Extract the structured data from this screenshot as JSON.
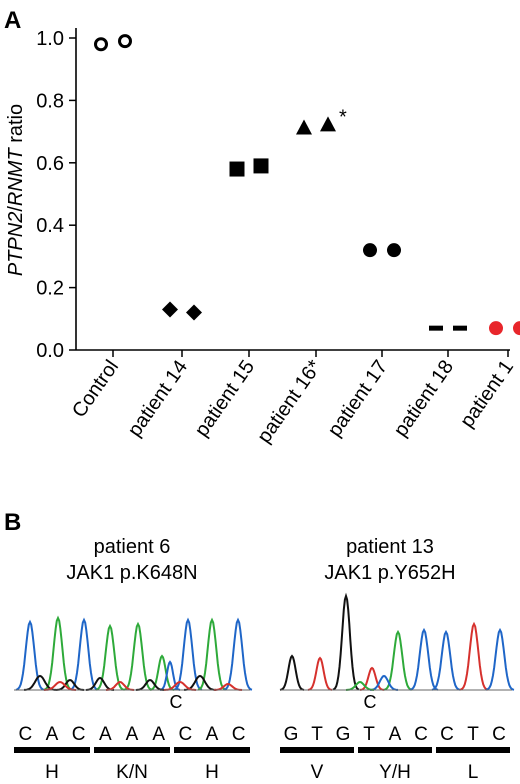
{
  "panel_a": {
    "letter": "A",
    "chart_data": {
      "type": "scatter",
      "ylabel_italic_1": "PTPN2",
      "ylabel_sep": "/",
      "ylabel_italic_2": "RNMT",
      "ylabel_suffix": " ratio",
      "ylim": [
        0,
        1.0
      ],
      "yticks": [
        "0.0",
        "0.2",
        "0.4",
        "0.6",
        "0.8",
        "1.0"
      ],
      "categories": [
        "Control",
        "patient 14",
        "patient 15",
        "patient 16*",
        "patient 17",
        "patient 18",
        "patient 1"
      ],
      "series": [
        {
          "marker": "open-circle",
          "color": "#000000",
          "values": [
            0.98,
            0.99
          ]
        },
        {
          "marker": "diamond",
          "color": "#000000",
          "values": [
            0.13,
            0.12
          ]
        },
        {
          "marker": "square",
          "color": "#000000",
          "values": [
            0.58,
            0.59
          ]
        },
        {
          "marker": "triangle",
          "color": "#000000",
          "values": [
            0.71,
            0.72
          ]
        },
        {
          "marker": "circle",
          "color": "#000000",
          "values": [
            0.32,
            0.32
          ]
        },
        {
          "marker": "dash",
          "color": "#000000",
          "values": [
            0.07,
            0.07
          ]
        },
        {
          "marker": "circle",
          "color": "#e8262b",
          "values": [
            0.07,
            0.07
          ]
        }
      ],
      "annotations": [
        "*"
      ]
    }
  },
  "panel_b": {
    "letter": "B",
    "left": {
      "title_line1": "patient 6",
      "title_line2": "JAK1 p.K648N",
      "variant_base": "C",
      "bases": [
        "C",
        "A",
        "C",
        "A",
        "A",
        "A",
        "C",
        "A",
        "C"
      ],
      "codons": [
        "H",
        "K/N",
        "H"
      ]
    },
    "right": {
      "title_line1": "patient 13",
      "title_line2": "JAK1 p.Y652H",
      "variant_base": "C",
      "bases": [
        "G",
        "T",
        "G",
        "T",
        "A",
        "C",
        "C",
        "T",
        "C"
      ],
      "codons": [
        "V",
        "Y/H",
        "L"
      ]
    },
    "trace_colors": {
      "A": "#2eaa3a",
      "C": "#1f66c8",
      "G": "#111111",
      "T": "#d6312d"
    }
  }
}
